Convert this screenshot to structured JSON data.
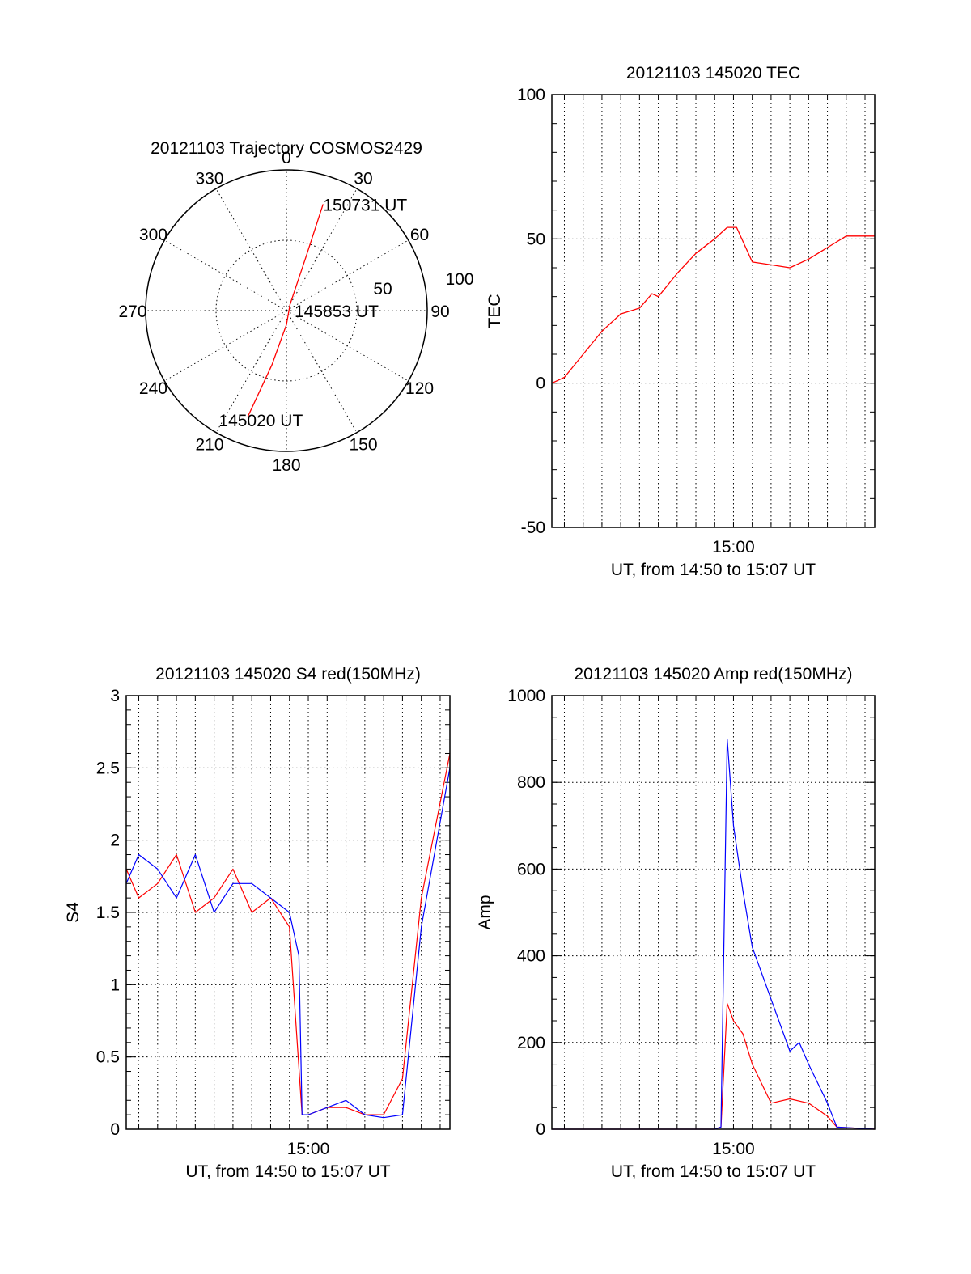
{
  "chart_data": [
    {
      "type": "polar",
      "title": "20121103 Trajectory COSMOS2429",
      "angle_tick_labels": [
        "0",
        "30",
        "60",
        "90",
        "120",
        "150",
        "180",
        "210",
        "240",
        "270",
        "300",
        "330"
      ],
      "radial_tick_labels": [
        "50",
        "100"
      ],
      "rlim": [
        0,
        100
      ],
      "grid": true,
      "series": [
        {
          "color": "#ff0000",
          "points": [
            {
              "azimuth": 200,
              "radius": 80
            },
            {
              "azimuth": 195,
              "radius": 40
            },
            {
              "azimuth": 180,
              "radius": 10
            },
            {
              "azimuth": 30,
              "radius": 5
            },
            {
              "azimuth": 20,
              "radius": 40
            },
            {
              "azimuth": 19,
              "radius": 80
            }
          ]
        }
      ],
      "annotations": [
        {
          "text": "150731 UT",
          "azimuth": 19,
          "radius": 80
        },
        {
          "text": "145853 UT",
          "azimuth": 180,
          "radius": 0
        },
        {
          "text": "145020 UT",
          "azimuth": 200,
          "radius": 80
        }
      ]
    },
    {
      "type": "line",
      "title": "20121103 145020 TEC",
      "ylabel": "TEC",
      "xlabel": "UT, from 14:50 to 15:07 UT",
      "x_tick_labels": [
        "15:00"
      ],
      "y_tick_labels": [
        "100",
        "50",
        "0",
        "-50"
      ],
      "xlim": [
        "14:50:20",
        "15:07:31"
      ],
      "ylim": [
        -50,
        100
      ],
      "grid": true,
      "series": [
        {
          "color": "#ff0000",
          "x": [
            "14:50:20",
            "14:51:00",
            "14:52:00",
            "14:53:00",
            "14:54:00",
            "14:55:00",
            "14:55:40",
            "14:56:00",
            "14:57:00",
            "14:58:00",
            "14:59:00",
            "14:59:40",
            "15:00:10",
            "15:01:00",
            "15:02:00",
            "15:03:00",
            "15:04:00",
            "15:05:00",
            "15:06:00",
            "15:07:31"
          ],
          "y": [
            0,
            2,
            10,
            18,
            24,
            26,
            31,
            30,
            38,
            45,
            50,
            54,
            54,
            42,
            41,
            40,
            43,
            47,
            51,
            51
          ]
        }
      ]
    },
    {
      "type": "line",
      "title": "20121103 145020 S4 red(150MHz)",
      "ylabel": "S4",
      "xlabel": "UT, from 14:50 to 15:07 UT",
      "x_tick_labels": [
        "15:00"
      ],
      "y_tick_labels": [
        "3",
        "2.5",
        "2",
        "1.5",
        "1",
        "0.5",
        "0"
      ],
      "xlim": [
        "14:50:20",
        "15:07:31"
      ],
      "ylim": [
        0,
        3
      ],
      "grid": true,
      "series": [
        {
          "color": "#ff0000",
          "x": [
            "14:50:20",
            "14:51:00",
            "14:52:00",
            "14:53:00",
            "14:54:00",
            "14:55:00",
            "14:56:00",
            "14:57:00",
            "14:58:00",
            "14:59:00",
            "14:59:40",
            "15:00:00",
            "15:01:00",
            "15:02:00",
            "15:03:00",
            "15:04:00",
            "15:05:00",
            "15:06:00",
            "15:07:31"
          ],
          "y": [
            1.8,
            1.6,
            1.7,
            1.9,
            1.5,
            1.6,
            1.8,
            1.5,
            1.6,
            1.4,
            0.1,
            0.1,
            0.15,
            0.15,
            0.1,
            0.1,
            0.35,
            1.6,
            2.6
          ]
        },
        {
          "color": "#0000ff",
          "x": [
            "14:50:20",
            "14:51:00",
            "14:52:00",
            "14:53:00",
            "14:54:00",
            "14:55:00",
            "14:56:00",
            "14:57:00",
            "14:58:00",
            "14:59:00",
            "14:59:30",
            "14:59:40",
            "15:00:00",
            "15:01:00",
            "15:02:00",
            "15:03:00",
            "15:04:00",
            "15:05:00",
            "15:06:00",
            "15:07:31"
          ],
          "y": [
            1.7,
            1.9,
            1.8,
            1.6,
            1.9,
            1.5,
            1.7,
            1.7,
            1.6,
            1.5,
            1.2,
            0.1,
            0.1,
            0.15,
            0.2,
            0.1,
            0.08,
            0.1,
            1.4,
            2.5
          ]
        }
      ]
    },
    {
      "type": "line",
      "title": "20121103 145020 Amp red(150MHz)",
      "ylabel": "Amp",
      "xlabel": "UT, from 14:50 to 15:07 UT",
      "x_tick_labels": [
        "15:00"
      ],
      "y_tick_labels": [
        "1000",
        "800",
        "600",
        "400",
        "200",
        "0"
      ],
      "xlim": [
        "14:50:20",
        "15:07:31"
      ],
      "ylim": [
        0,
        1000
      ],
      "grid": true,
      "series": [
        {
          "color": "#ff0000",
          "x": [
            "14:50:20",
            "14:59:00",
            "14:59:20",
            "14:59:40",
            "15:00:00",
            "15:00:30",
            "15:01:00",
            "15:02:00",
            "15:03:00",
            "15:04:00",
            "15:05:00",
            "15:05:30",
            "15:07:31"
          ],
          "y": [
            0,
            0,
            5,
            290,
            250,
            220,
            150,
            60,
            70,
            60,
            30,
            5,
            0
          ]
        },
        {
          "color": "#0000ff",
          "x": [
            "14:50:20",
            "14:59:00",
            "14:59:20",
            "14:59:40",
            "15:00:00",
            "15:00:30",
            "15:01:00",
            "15:02:00",
            "15:03:00",
            "15:03:30",
            "15:04:00",
            "15:05:00",
            "15:05:30",
            "15:07:31"
          ],
          "y": [
            0,
            0,
            5,
            900,
            700,
            550,
            420,
            300,
            180,
            200,
            150,
            60,
            5,
            0
          ]
        }
      ]
    }
  ]
}
